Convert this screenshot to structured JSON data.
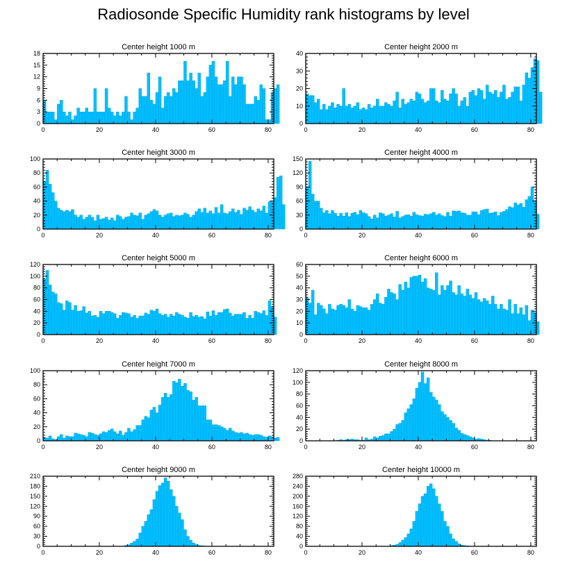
{
  "title": "Radiosonde Specific Humidity rank histograms by level",
  "colors": {
    "bar": "#00bfff",
    "bar_edge": "#0099dd",
    "axis": "#000000"
  },
  "chart_data": [
    {
      "type": "bar",
      "title": "Center height 1000 m",
      "xlim": [
        0,
        82
      ],
      "ylim": [
        0,
        18
      ],
      "xticks": [
        0,
        20,
        40,
        60,
        80
      ],
      "yticks": [
        0,
        3,
        6,
        9,
        12,
        15,
        18
      ],
      "values": [
        6,
        3,
        3,
        3,
        1,
        5,
        6,
        3,
        2,
        3,
        1,
        2,
        4,
        3,
        3,
        4,
        3,
        3,
        9,
        3,
        3,
        3,
        9,
        4,
        3,
        2,
        3,
        2,
        3,
        7,
        3,
        1,
        3,
        4,
        9,
        7,
        7,
        13,
        6,
        5,
        8,
        12,
        4,
        7,
        8,
        7,
        9,
        8,
        11,
        11,
        16,
        11,
        13,
        11,
        9,
        13,
        7,
        8,
        12,
        15,
        16,
        12,
        10,
        10,
        11,
        16,
        7,
        12,
        10,
        12,
        12,
        10,
        5,
        5,
        5,
        7,
        6,
        10,
        9,
        1,
        1,
        8,
        9,
        10
      ],
      "xlabel": "",
      "ylabel": ""
    },
    {
      "type": "bar",
      "title": "Center height 2000 m",
      "xlim": [
        0,
        82
      ],
      "ylim": [
        0,
        40
      ],
      "xticks": [
        0,
        20,
        40,
        60,
        80
      ],
      "yticks": [
        0,
        10,
        20,
        30,
        40
      ],
      "values": [
        17,
        16,
        16,
        12,
        14,
        8,
        11,
        8,
        10,
        12,
        9,
        11,
        10,
        20,
        10,
        11,
        9,
        10,
        12,
        8,
        9,
        8,
        11,
        9,
        10,
        14,
        10,
        10,
        12,
        11,
        10,
        13,
        18,
        9,
        14,
        11,
        12,
        14,
        13,
        18,
        17,
        14,
        12,
        13,
        20,
        20,
        13,
        12,
        19,
        14,
        13,
        17,
        20,
        17,
        10,
        13,
        15,
        10,
        18,
        19,
        16,
        20,
        19,
        14,
        22,
        18,
        17,
        19,
        15,
        18,
        22,
        14,
        15,
        18,
        21,
        21,
        13,
        22,
        29,
        26,
        32,
        37,
        36,
        18
      ],
      "xlabel": "",
      "ylabel": ""
    },
    {
      "type": "bar",
      "title": "Center height 3000 m",
      "xlim": [
        0,
        82
      ],
      "ylim": [
        0,
        100
      ],
      "xticks": [
        0,
        20,
        40,
        60,
        80
      ],
      "yticks": [
        0,
        20,
        40,
        60,
        80,
        100
      ],
      "values": [
        68,
        84,
        64,
        52,
        40,
        30,
        27,
        25,
        27,
        25,
        28,
        20,
        17,
        20,
        14,
        17,
        20,
        17,
        12,
        20,
        14,
        15,
        17,
        13,
        16,
        12,
        20,
        18,
        14,
        17,
        18,
        23,
        20,
        19,
        23,
        14,
        20,
        22,
        25,
        28,
        26,
        20,
        17,
        20,
        22,
        23,
        18,
        20,
        19,
        20,
        23,
        21,
        17,
        20,
        25,
        29,
        24,
        30,
        23,
        26,
        22,
        31,
        23,
        35,
        23,
        22,
        25,
        29,
        24,
        27,
        21,
        30,
        27,
        32,
        27,
        24,
        29,
        26,
        33,
        23,
        39,
        40,
        45,
        74,
        76,
        35
      ],
      "xlabel": "",
      "ylabel": ""
    },
    {
      "type": "bar",
      "title": "Center height 4000 m",
      "xlim": [
        0,
        82
      ],
      "ylim": [
        0,
        150
      ],
      "xticks": [
        0,
        20,
        40,
        60,
        80
      ],
      "yticks": [
        0,
        30,
        60,
        90,
        120,
        150
      ],
      "values": [
        90,
        145,
        75,
        60,
        60,
        45,
        35,
        40,
        33,
        40,
        34,
        28,
        34,
        28,
        35,
        27,
        34,
        36,
        31,
        40,
        35,
        33,
        27,
        22,
        30,
        24,
        35,
        33,
        28,
        30,
        33,
        26,
        38,
        24,
        27,
        30,
        31,
        28,
        36,
        31,
        29,
        28,
        32,
        31,
        33,
        36,
        30,
        33,
        29,
        27,
        36,
        28,
        39,
        38,
        39,
        35,
        34,
        30,
        30,
        37,
        37,
        31,
        40,
        42,
        43,
        34,
        35,
        37,
        29,
        36,
        38,
        42,
        48,
        46,
        56,
        52,
        55,
        47,
        63,
        70,
        90,
        61,
        32
      ],
      "xlabel": "",
      "ylabel": ""
    },
    {
      "type": "bar",
      "title": "Center height 5000 m",
      "xlim": [
        0,
        82
      ],
      "ylim": [
        0,
        120
      ],
      "xticks": [
        0,
        20,
        40,
        60,
        80
      ],
      "yticks": [
        0,
        20,
        40,
        60,
        80,
        100,
        120
      ],
      "values": [
        95,
        110,
        85,
        73,
        70,
        55,
        53,
        42,
        58,
        55,
        42,
        50,
        40,
        41,
        48,
        37,
        40,
        32,
        33,
        30,
        40,
        36,
        40,
        40,
        38,
        36,
        28,
        33,
        38,
        37,
        36,
        30,
        33,
        28,
        32,
        32,
        37,
        35,
        42,
        40,
        44,
        36,
        33,
        35,
        30,
        35,
        32,
        38,
        35,
        33,
        30,
        28,
        38,
        31,
        33,
        30,
        31,
        27,
        39,
        32,
        41,
        33,
        38,
        38,
        43,
        44,
        37,
        32,
        35,
        35,
        35,
        38,
        28,
        33,
        28,
        40,
        38,
        36,
        41,
        33,
        58,
        48,
        30
      ],
      "xlabel": "",
      "ylabel": ""
    },
    {
      "type": "bar",
      "title": "Center height 6000 m",
      "xlim": [
        0,
        82
      ],
      "ylim": [
        0,
        60
      ],
      "xticks": [
        0,
        20,
        40,
        60,
        80
      ],
      "yticks": [
        0,
        10,
        20,
        30,
        40,
        50,
        60
      ],
      "values": [
        32,
        27,
        38,
        17,
        27,
        25,
        22,
        18,
        26,
        22,
        21,
        25,
        26,
        25,
        23,
        30,
        22,
        20,
        25,
        24,
        23,
        23,
        21,
        26,
        30,
        35,
        27,
        26,
        32,
        39,
        36,
        35,
        30,
        43,
        38,
        45,
        40,
        49,
        50,
        50,
        51,
        45,
        48,
        40,
        39,
        38,
        53,
        34,
        42,
        38,
        42,
        46,
        36,
        34,
        42,
        35,
        33,
        39,
        34,
        31,
        36,
        30,
        28,
        31,
        29,
        26,
        33,
        26,
        22,
        26,
        22,
        21,
        30,
        18,
        26,
        18,
        23,
        17,
        25,
        12,
        21,
        19,
        11
      ],
      "xlabel": "",
      "ylabel": ""
    },
    {
      "type": "bar",
      "title": "Center height 7000 m",
      "xlim": [
        0,
        82
      ],
      "ylim": [
        0,
        100
      ],
      "xticks": [
        0,
        20,
        40,
        60,
        80
      ],
      "yticks": [
        0,
        20,
        40,
        60,
        80,
        100
      ],
      "values": [
        5,
        4,
        7,
        3,
        2,
        6,
        9,
        4,
        7,
        6,
        6,
        11,
        10,
        9,
        8,
        6,
        12,
        11,
        9,
        8,
        10,
        13,
        12,
        15,
        17,
        13,
        10,
        14,
        8,
        12,
        18,
        13,
        16,
        22,
        22,
        30,
        35,
        33,
        44,
        48,
        40,
        51,
        62,
        68,
        62,
        66,
        85,
        83,
        88,
        78,
        82,
        72,
        70,
        58,
        62,
        50,
        50,
        50,
        30,
        30,
        23,
        23,
        22,
        20,
        18,
        15,
        18,
        14,
        12,
        11,
        12,
        10,
        11,
        9,
        8,
        9,
        9,
        8,
        6,
        5,
        7,
        6,
        4,
        5
      ],
      "xlabel": "",
      "ylabel": ""
    },
    {
      "type": "bar",
      "title": "Center height 8000 m",
      "xlim": [
        0,
        82
      ],
      "ylim": [
        0,
        120
      ],
      "xticks": [
        0,
        20,
        40,
        60,
        80
      ],
      "yticks": [
        0,
        20,
        40,
        60,
        80,
        100,
        120
      ],
      "values": [
        0,
        0,
        0,
        0,
        0,
        0,
        0,
        0,
        0,
        0,
        0,
        1,
        2,
        1,
        2,
        2,
        3,
        2,
        2,
        1,
        1,
        5,
        2,
        3,
        7,
        5,
        8,
        9,
        12,
        12,
        16,
        20,
        28,
        30,
        35,
        48,
        55,
        62,
        72,
        90,
        100,
        118,
        98,
        108,
        83,
        75,
        70,
        62,
        50,
        45,
        40,
        35,
        30,
        22,
        18,
        13,
        11,
        9,
        7,
        5,
        3,
        4,
        3,
        2,
        1,
        1,
        0,
        0,
        0,
        0,
        0,
        0,
        0,
        0,
        0,
        0,
        0,
        0,
        0,
        0,
        0,
        0,
        0
      ],
      "xlabel": "",
      "ylabel": ""
    },
    {
      "type": "bar",
      "title": "Center height 9000 m",
      "xlim": [
        0,
        82
      ],
      "ylim": [
        0,
        210
      ],
      "xticks": [
        0,
        20,
        40,
        60,
        80
      ],
      "yticks": [
        0,
        30,
        60,
        90,
        120,
        150,
        180,
        210
      ],
      "values": [
        0,
        0,
        0,
        0,
        0,
        0,
        0,
        0,
        0,
        0,
        0,
        0,
        0,
        0,
        0,
        0,
        0,
        0,
        0,
        0,
        0,
        0,
        0,
        0,
        0,
        0,
        0,
        0,
        0,
        3,
        5,
        10,
        15,
        22,
        40,
        60,
        75,
        95,
        110,
        140,
        165,
        182,
        190,
        205,
        195,
        170,
        150,
        120,
        100,
        80,
        50,
        30,
        18,
        10,
        6,
        3,
        2,
        1,
        0,
        0,
        0,
        0,
        0,
        0,
        0,
        0,
        0,
        0,
        0,
        0,
        0,
        0,
        0,
        0,
        0,
        0,
        0,
        0,
        0,
        0,
        0,
        0,
        0
      ],
      "xlabel": "",
      "ylabel": ""
    },
    {
      "type": "bar",
      "title": "Center height 10000 m",
      "xlim": [
        0,
        82
      ],
      "ylim": [
        0,
        280
      ],
      "xticks": [
        0,
        20,
        40,
        60,
        80
      ],
      "yticks": [
        0,
        40,
        80,
        120,
        160,
        200,
        240,
        280
      ],
      "values": [
        0,
        0,
        0,
        0,
        0,
        0,
        0,
        0,
        0,
        0,
        0,
        0,
        0,
        0,
        0,
        0,
        0,
        0,
        0,
        0,
        0,
        0,
        0,
        0,
        0,
        0,
        0,
        0,
        0,
        0,
        3,
        5,
        8,
        15,
        25,
        35,
        50,
        70,
        100,
        140,
        170,
        200,
        210,
        240,
        250,
        230,
        200,
        170,
        140,
        100,
        80,
        50,
        30,
        20,
        10,
        5,
        3,
        2,
        1,
        0,
        0,
        0,
        0,
        0,
        0,
        0,
        0,
        0,
        0,
        0,
        0,
        0,
        0,
        0,
        0,
        0,
        0,
        0,
        0,
        0,
        0,
        0,
        0
      ],
      "xlabel": "",
      "ylabel": ""
    }
  ]
}
